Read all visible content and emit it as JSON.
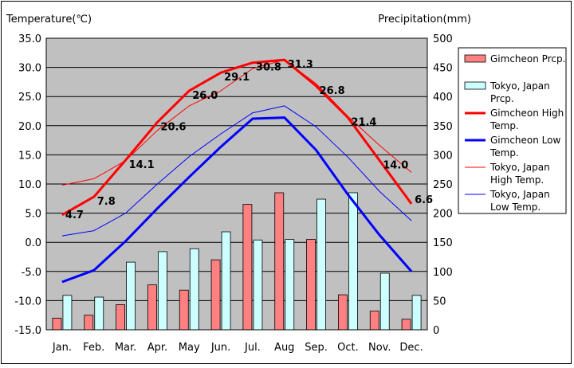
{
  "chart_data": {
    "type": "bar",
    "title": "",
    "ylabel_left": "Temperature(℃)",
    "ylabel_right": "Precipitation(mm)",
    "xlabel": "",
    "categories": [
      "Jan.",
      "Feb.",
      "Mar.",
      "Apr.",
      "May",
      "Jun.",
      "Jul.",
      "Aug",
      "Sep.",
      "Oct.",
      "Nov.",
      "Dec."
    ],
    "ylim_left": [
      -15,
      35
    ],
    "ylim_right": [
      0,
      500
    ],
    "yticks_left": [
      "35.0",
      "30.0",
      "25.0",
      "20.0",
      "15.0",
      "10.0",
      "5.0",
      "0.0",
      "-5.0",
      "-10.0",
      "-15.0"
    ],
    "yticks_right": [
      "500",
      "450",
      "400",
      "350",
      "300",
      "250",
      "200",
      "150",
      "100",
      "50",
      "0"
    ],
    "grid": "horizontal",
    "legend_position": "right",
    "bar_series": [
      {
        "name": "Gimcheon Prcp.",
        "color": "#ff8080",
        "values": [
          20,
          25,
          43,
          77,
          68,
          120,
          215,
          235,
          155,
          60,
          32,
          18
        ]
      },
      {
        "name": "Tokyo, Japan Prcp.",
        "color": "#ccffff",
        "values": [
          59,
          56,
          116,
          134,
          139,
          168,
          154,
          155,
          224,
          235,
          97,
          59
        ]
      }
    ],
    "line_series": [
      {
        "name": "Gimcheon High Temp.",
        "color": "#ff0000",
        "width": "thick",
        "values": [
          4.7,
          7.8,
          14.1,
          20.6,
          26.0,
          29.1,
          30.8,
          31.3,
          26.8,
          21.4,
          14.0,
          6.6
        ],
        "labels": [
          "4.7",
          "7.8",
          "14.1",
          "20.6",
          "26.0",
          "29.1",
          "30.8",
          "31.3",
          "26.8",
          "21.4",
          "14.0",
          "6.6"
        ]
      },
      {
        "name": "Gimcheon Low Temp.",
        "color": "#0000ff",
        "width": "thick",
        "values": [
          -6.8,
          -4.8,
          0.2,
          5.8,
          11.2,
          16.4,
          21.2,
          21.4,
          15.8,
          8.2,
          1.2,
          -5.0
        ]
      },
      {
        "name": "Tokyo, Japan High Temp.",
        "color": "#ff0000",
        "width": "thin",
        "values": [
          9.8,
          10.9,
          14.0,
          19.2,
          23.4,
          26.0,
          29.8,
          31.3,
          27.2,
          21.6,
          16.6,
          12.0
        ]
      },
      {
        "name": "Tokyo, Japan Low Temp.",
        "color": "#0000ff",
        "width": "thin",
        "values": [
          1.1,
          2.0,
          5.0,
          10.0,
          14.7,
          18.6,
          22.2,
          23.4,
          19.8,
          14.6,
          8.7,
          3.7
        ]
      }
    ]
  },
  "legend": {
    "items": [
      {
        "label_lines": [
          "Gimcheon Prcp."
        ],
        "kind": "bar",
        "color": "#ff8080"
      },
      {
        "label_lines": [
          "Tokyo, Japan",
          "Prcp."
        ],
        "kind": "bar",
        "color": "#ccffff"
      },
      {
        "label_lines": [
          "Gimcheon High",
          "Temp."
        ],
        "kind": "line-thick",
        "color": "#ff0000"
      },
      {
        "label_lines": [
          "Gimcheon Low",
          "Temp."
        ],
        "kind": "line-thick",
        "color": "#0000ff"
      },
      {
        "label_lines": [
          "Tokyo, Japan",
          "High Temp."
        ],
        "kind": "line-thin",
        "color": "#ff0000"
      },
      {
        "label_lines": [
          "Tokyo, Japan",
          "Low Temp."
        ],
        "kind": "line-thin",
        "color": "#0000ff"
      }
    ]
  }
}
